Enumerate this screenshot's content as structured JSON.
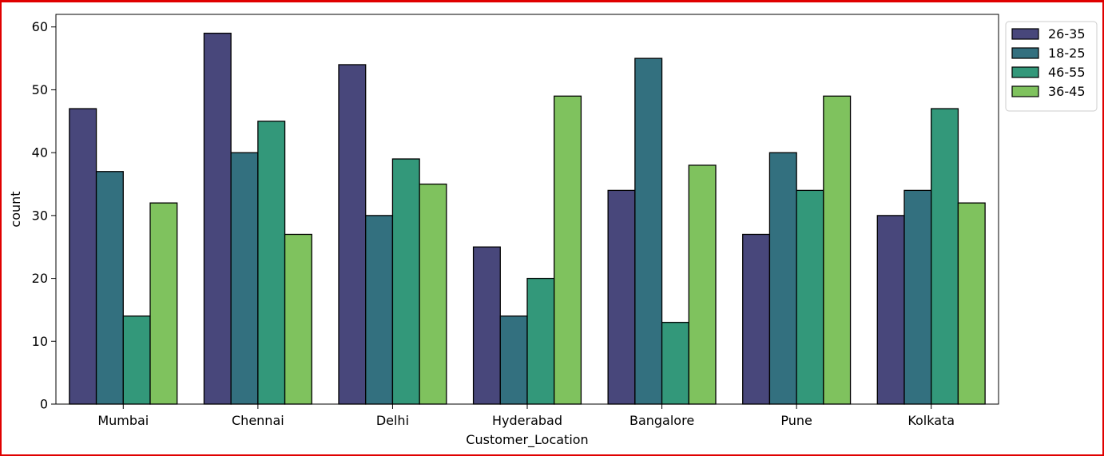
{
  "chart_data": {
    "type": "bar",
    "xlabel": "Customer_Location",
    "ylabel": "count",
    "ylim": [
      0,
      62
    ],
    "yticks": [
      0,
      10,
      20,
      30,
      40,
      50,
      60
    ],
    "categories": [
      "Mumbai",
      "Chennai",
      "Delhi",
      "Hyderabad",
      "Bangalore",
      "Pune",
      "Kolkata"
    ],
    "series": [
      {
        "name": "26-35",
        "color": "#48477b",
        "values": [
          47,
          59,
          54,
          25,
          34,
          27,
          30
        ]
      },
      {
        "name": "18-25",
        "color": "#33707f",
        "values": [
          37,
          40,
          30,
          14,
          55,
          40,
          34
        ]
      },
      {
        "name": "46-55",
        "color": "#33987a",
        "values": [
          14,
          45,
          39,
          20,
          13,
          34,
          47
        ]
      },
      {
        "name": "36-45",
        "color": "#7fc25e",
        "values": [
          32,
          27,
          35,
          49,
          38,
          49,
          32
        ]
      }
    ],
    "legend_position": "outside-right-top",
    "grid": false
  }
}
